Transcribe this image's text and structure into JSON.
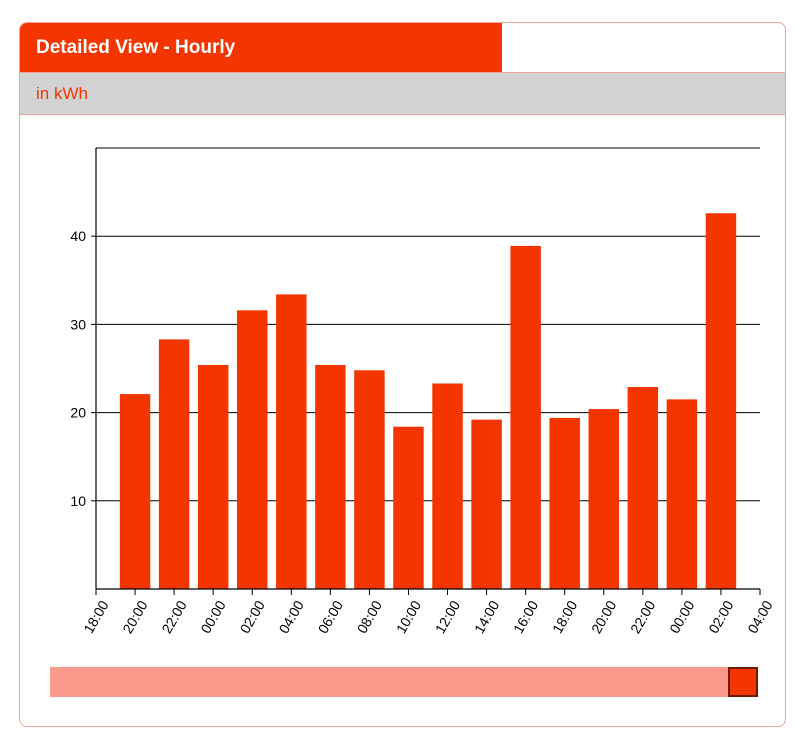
{
  "header": {
    "title": "Detailed View - Hourly",
    "unit_label": "in kWh"
  },
  "colors": {
    "accent": "#f53500",
    "scroll_track": "#fb9a8c",
    "grid": "#000000"
  },
  "chart_data": {
    "type": "bar",
    "title": "Detailed View - Hourly",
    "ylabel": "in kWh",
    "xlabel": "",
    "ylim": [
      0,
      50
    ],
    "yticks": [
      10,
      20,
      30,
      40
    ],
    "xticks": [
      "18:00",
      "20:00",
      "22:00",
      "00:00",
      "02:00",
      "04:00",
      "06:00",
      "08:00",
      "10:00",
      "12:00",
      "14:00",
      "16:00",
      "18:00",
      "20:00",
      "22:00",
      "00:00",
      "02:00",
      "04:00"
    ],
    "categories": [
      "20:00",
      "22:00",
      "00:00",
      "02:00",
      "04:00",
      "06:00",
      "08:00",
      "10:00",
      "12:00",
      "14:00",
      "16:00",
      "18:00",
      "20:00",
      "22:00",
      "00:00",
      "02:00"
    ],
    "values": [
      22.1,
      28.3,
      25.4,
      31.6,
      33.4,
      25.4,
      24.8,
      18.4,
      23.3,
      19.2,
      38.9,
      19.4,
      20.4,
      22.9,
      21.5,
      42.6
    ]
  },
  "scrollbar": {
    "position": "end"
  }
}
